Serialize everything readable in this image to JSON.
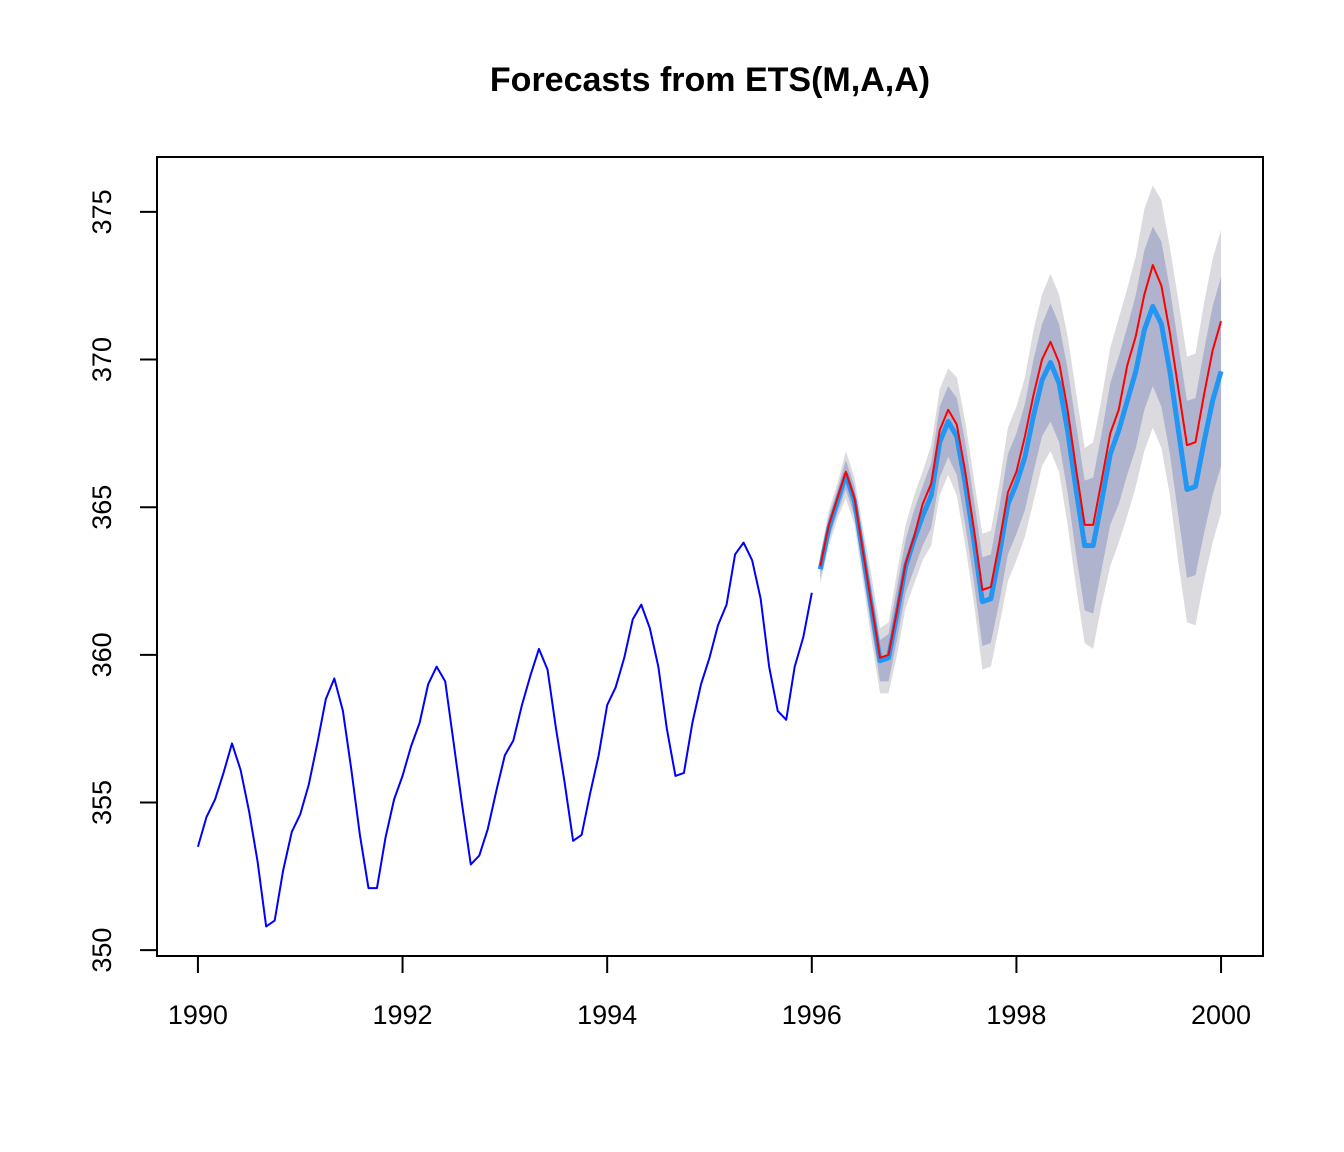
{
  "chart_data": {
    "type": "line",
    "title": "Forecasts from ETS(M,A,A)",
    "xlim": [
      1989.6,
      2000.41
    ],
    "ylim": [
      349.8,
      376.86
    ],
    "xticks": [
      1990,
      1992,
      1994,
      1996,
      1998,
      2000
    ],
    "yticks": [
      350,
      355,
      360,
      365,
      370,
      375
    ],
    "x": [
      1990,
      1990.083,
      1990.167,
      1990.25,
      1990.333,
      1990.417,
      1990.5,
      1990.583,
      1990.667,
      1990.75,
      1990.833,
      1990.917,
      1991,
      1991.083,
      1991.167,
      1991.25,
      1991.333,
      1991.417,
      1991.5,
      1991.583,
      1991.667,
      1991.75,
      1991.833,
      1991.917,
      1992,
      1992.083,
      1992.167,
      1992.25,
      1992.333,
      1992.417,
      1992.5,
      1992.583,
      1992.667,
      1992.75,
      1992.833,
      1992.917,
      1993,
      1993.083,
      1993.167,
      1993.25,
      1993.333,
      1993.417,
      1993.5,
      1993.583,
      1993.667,
      1993.75,
      1993.833,
      1993.917,
      1994,
      1994.083,
      1994.167,
      1994.25,
      1994.333,
      1994.417,
      1994.5,
      1994.583,
      1994.667,
      1994.75,
      1994.833,
      1994.917,
      1995,
      1995.083,
      1995.167,
      1995.25,
      1995.333,
      1995.417,
      1995.5,
      1995.583,
      1995.667,
      1995.75,
      1995.833,
      1995.917,
      1996,
      1996.083,
      1996.167,
      1996.25,
      1996.333,
      1996.417,
      1996.5,
      1996.583,
      1996.667,
      1996.75,
      1996.833,
      1996.917,
      1997,
      1997.083,
      1997.167,
      1997.25,
      1997.333,
      1997.417,
      1997.5,
      1997.583,
      1997.667,
      1997.75,
      1997.833,
      1997.917,
      1998,
      1998.083,
      1998.167,
      1998.25,
      1998.333,
      1998.417,
      1998.5,
      1998.583,
      1998.667,
      1998.75,
      1998.833,
      1998.917,
      1999,
      1999.083,
      1999.167,
      1999.25,
      1999.333,
      1999.417,
      1999.5,
      1999.583,
      1999.667,
      1999.75,
      1999.833,
      1999.917,
      2000
    ],
    "intervals": [
      {
        "color": "#dbdbdf",
        "upper": [
          null,
          null,
          null,
          null,
          null,
          null,
          null,
          null,
          null,
          null,
          null,
          null,
          null,
          null,
          null,
          null,
          null,
          null,
          null,
          null,
          null,
          null,
          null,
          null,
          null,
          null,
          null,
          null,
          null,
          null,
          null,
          null,
          null,
          null,
          null,
          null,
          null,
          null,
          null,
          null,
          null,
          null,
          null,
          null,
          null,
          null,
          null,
          null,
          null,
          null,
          null,
          null,
          null,
          null,
          null,
          null,
          null,
          null,
          null,
          null,
          null,
          null,
          null,
          null,
          null,
          null,
          null,
          null,
          null,
          null,
          null,
          null,
          null,
          363.4,
          364.9,
          365.8,
          366.9,
          366.0,
          364.3,
          362.7,
          360.9,
          361.1,
          362.8,
          364.4,
          365.4,
          366.2,
          367.1,
          369.0,
          369.7,
          369.4,
          367.9,
          366.0,
          364.1,
          364.2,
          365.8,
          367.7,
          368.4,
          369.4,
          371.0,
          372.2,
          372.9,
          372.2,
          370.8,
          368.9,
          367.0,
          367.2,
          368.7,
          370.4,
          371.4,
          372.4,
          373.5,
          375.1,
          375.9,
          375.4,
          373.8,
          372.0,
          370.1,
          370.2,
          371.9,
          373.4,
          374.4
        ],
        "lower": [
          null,
          null,
          null,
          null,
          null,
          null,
          null,
          null,
          null,
          null,
          null,
          null,
          null,
          null,
          null,
          null,
          null,
          null,
          null,
          null,
          null,
          null,
          null,
          null,
          null,
          null,
          null,
          null,
          null,
          null,
          null,
          null,
          null,
          null,
          null,
          null,
          null,
          null,
          null,
          null,
          null,
          null,
          null,
          null,
          null,
          null,
          null,
          null,
          null,
          null,
          null,
          null,
          null,
          null,
          null,
          null,
          null,
          null,
          null,
          null,
          null,
          null,
          null,
          null,
          null,
          null,
          null,
          null,
          null,
          null,
          null,
          null,
          null,
          362.4,
          363.7,
          364.6,
          365.3,
          364.4,
          362.5,
          360.5,
          358.7,
          358.7,
          360.0,
          361.6,
          362.4,
          363.2,
          363.7,
          365.4,
          366.1,
          365.4,
          363.7,
          361.8,
          359.5,
          359.6,
          361.0,
          362.5,
          363.2,
          364.0,
          365.2,
          366.4,
          366.9,
          366.2,
          364.4,
          362.3,
          360.4,
          360.2,
          361.7,
          363.0,
          363.8,
          364.7,
          365.7,
          366.9,
          367.7,
          367.0,
          365.4,
          363.1,
          361.1,
          361.0,
          362.5,
          363.8,
          364.8
        ]
      },
      {
        "color": "#b0b3ce",
        "upper": [
          null,
          null,
          null,
          null,
          null,
          null,
          null,
          null,
          null,
          null,
          null,
          null,
          null,
          null,
          null,
          null,
          null,
          null,
          null,
          null,
          null,
          null,
          null,
          null,
          null,
          null,
          null,
          null,
          null,
          null,
          null,
          null,
          null,
          null,
          null,
          null,
          null,
          null,
          null,
          null,
          null,
          null,
          null,
          null,
          null,
          null,
          null,
          null,
          null,
          null,
          null,
          null,
          null,
          null,
          null,
          null,
          null,
          null,
          null,
          null,
          null,
          null,
          null,
          null,
          null,
          null,
          null,
          null,
          null,
          null,
          null,
          null,
          null,
          363.2,
          364.7,
          365.6,
          366.6,
          365.7,
          364.0,
          362.3,
          360.5,
          360.7,
          362.3,
          363.9,
          364.9,
          365.7,
          366.5,
          368.4,
          369.1,
          368.7,
          367.2,
          365.3,
          363.3,
          363.4,
          365.0,
          366.8,
          367.5,
          368.5,
          370.0,
          371.2,
          371.9,
          371.2,
          369.7,
          367.8,
          365.9,
          366.0,
          367.5,
          369.2,
          370.1,
          371.1,
          372.2,
          373.7,
          374.5,
          374.0,
          372.4,
          370.5,
          368.6,
          368.7,
          370.3,
          371.8,
          372.8
        ],
        "lower": [
          null,
          null,
          null,
          null,
          null,
          null,
          null,
          null,
          null,
          null,
          null,
          null,
          null,
          null,
          null,
          null,
          null,
          null,
          null,
          null,
          null,
          null,
          null,
          null,
          null,
          null,
          null,
          null,
          null,
          null,
          null,
          null,
          null,
          null,
          null,
          null,
          null,
          null,
          null,
          null,
          null,
          null,
          null,
          null,
          null,
          null,
          null,
          null,
          null,
          null,
          null,
          null,
          null,
          null,
          null,
          null,
          null,
          null,
          null,
          null,
          null,
          null,
          null,
          null,
          null,
          null,
          null,
          null,
          null,
          null,
          null,
          null,
          null,
          362.6,
          363.9,
          364.8,
          365.6,
          364.7,
          362.8,
          360.9,
          359.1,
          359.1,
          360.5,
          362.1,
          362.9,
          363.7,
          364.3,
          366.0,
          366.7,
          366.1,
          364.4,
          362.5,
          360.3,
          360.4,
          361.8,
          363.4,
          364.1,
          364.9,
          366.2,
          367.4,
          367.9,
          367.2,
          365.5,
          363.4,
          361.5,
          361.4,
          362.9,
          364.4,
          365.1,
          366.1,
          367.0,
          368.3,
          369.1,
          368.4,
          366.8,
          364.7,
          362.6,
          362.7,
          364.1,
          365.4,
          366.4
        ]
      }
    ],
    "series": [
      {
        "color": "#0000ff",
        "width": 2,
        "values": [
          353.5,
          354.5,
          355.1,
          356.0,
          357.0,
          356.1,
          354.7,
          353.0,
          350.8,
          351.0,
          352.7,
          354.0,
          354.6,
          355.6,
          357.0,
          358.5,
          359.2,
          358.1,
          356.1,
          353.9,
          352.1,
          352.1,
          353.8,
          355.1,
          355.9,
          356.9,
          357.7,
          359.0,
          359.6,
          359.1,
          357.0,
          354.9,
          352.9,
          353.2,
          354.1,
          355.4,
          356.6,
          357.1,
          358.3,
          359.3,
          360.2,
          359.5,
          357.5,
          355.7,
          353.7,
          353.9,
          355.3,
          356.6,
          358.3,
          358.9,
          359.9,
          361.2,
          361.7,
          360.9,
          359.6,
          357.5,
          355.9,
          356.0,
          357.7,
          359.0,
          359.9,
          361.0,
          361.7,
          363.4,
          363.8,
          363.2,
          361.9,
          359.6,
          358.1,
          357.8,
          359.6,
          360.6,
          362.1,
          null,
          null,
          null,
          null,
          null,
          null,
          null,
          null,
          null,
          null,
          null,
          null,
          null,
          null,
          null,
          null,
          null,
          null,
          null,
          null,
          null,
          null,
          null,
          null,
          null,
          null,
          null,
          null,
          null,
          null,
          null,
          null,
          null,
          null,
          null,
          null,
          null,
          null,
          null,
          null,
          null,
          null,
          null,
          null,
          null,
          null,
          null,
          null
        ]
      },
      {
        "color": "#2196f3",
        "width": 5,
        "values": [
          null,
          null,
          null,
          null,
          null,
          null,
          null,
          null,
          null,
          null,
          null,
          null,
          null,
          null,
          null,
          null,
          null,
          null,
          null,
          null,
          null,
          null,
          null,
          null,
          null,
          null,
          null,
          null,
          null,
          null,
          null,
          null,
          null,
          null,
          null,
          null,
          null,
          null,
          null,
          null,
          null,
          null,
          null,
          null,
          null,
          null,
          null,
          null,
          null,
          null,
          null,
          null,
          null,
          null,
          null,
          null,
          null,
          null,
          null,
          null,
          null,
          null,
          null,
          null,
          null,
          null,
          null,
          null,
          null,
          null,
          null,
          null,
          null,
          362.9,
          364.3,
          365.2,
          366.1,
          365.2,
          363.4,
          361.6,
          359.8,
          359.9,
          361.4,
          363.0,
          363.9,
          364.7,
          365.4,
          367.2,
          367.9,
          367.4,
          365.8,
          363.9,
          361.8,
          361.9,
          363.4,
          365.1,
          365.8,
          366.7,
          368.1,
          369.3,
          369.9,
          369.2,
          367.6,
          365.6,
          363.7,
          363.7,
          365.2,
          366.8,
          367.6,
          368.6,
          369.6,
          371.0,
          371.8,
          371.2,
          369.6,
          367.6,
          365.6,
          365.7,
          367.2,
          368.6,
          369.6
        ]
      },
      {
        "color": "#ff0000",
        "width": 2,
        "values": [
          null,
          null,
          null,
          null,
          null,
          null,
          null,
          null,
          null,
          null,
          null,
          null,
          null,
          null,
          null,
          null,
          null,
          null,
          null,
          null,
          null,
          null,
          null,
          null,
          null,
          null,
          null,
          null,
          null,
          null,
          null,
          null,
          null,
          null,
          null,
          null,
          null,
          null,
          null,
          null,
          null,
          null,
          null,
          null,
          null,
          null,
          null,
          null,
          null,
          null,
          null,
          null,
          null,
          null,
          null,
          null,
          null,
          null,
          null,
          null,
          null,
          null,
          null,
          null,
          null,
          null,
          null,
          null,
          null,
          null,
          null,
          null,
          null,
          363.0,
          364.4,
          365.3,
          366.2,
          365.3,
          363.5,
          361.7,
          359.9,
          360.0,
          361.5,
          363.1,
          364.0,
          365.1,
          365.8,
          367.6,
          368.3,
          367.8,
          366.2,
          364.3,
          362.2,
          362.3,
          363.8,
          365.5,
          366.2,
          367.4,
          368.8,
          370.0,
          370.6,
          369.9,
          368.3,
          366.3,
          364.4,
          364.4,
          365.9,
          367.5,
          368.3,
          369.8,
          370.8,
          372.2,
          373.2,
          372.5,
          370.9,
          369.0,
          367.1,
          367.2,
          368.8,
          370.3,
          371.3
        ]
      }
    ]
  }
}
